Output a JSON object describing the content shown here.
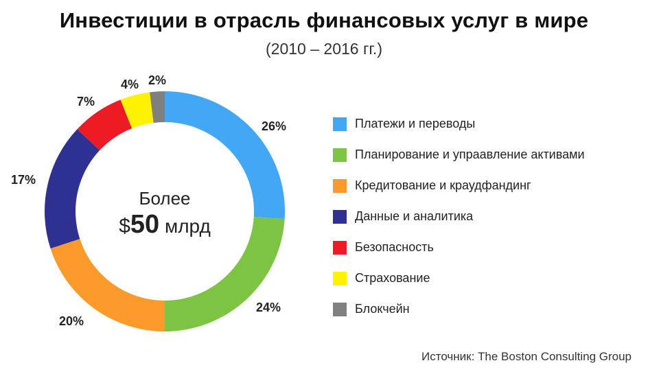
{
  "chart_data": {
    "type": "pie",
    "title": "Инвестиции в отрасль финансовых услуг в мире",
    "subtitle": "(2010 – 2016 гг.)",
    "center_text": {
      "line1": "Более",
      "currency": "$",
      "amount": "50",
      "unit": "млрд"
    },
    "slices": [
      {
        "label": "Платежи и переводы",
        "value": 26,
        "value_label": "26%",
        "color": "#42a8f5"
      },
      {
        "label": "Планирование и упраавление активами",
        "value": 24,
        "value_label": "24%",
        "color": "#7dc442"
      },
      {
        "label": "Кредитование и краудфандинг",
        "value": 20,
        "value_label": "20%",
        "color": "#f99a2b"
      },
      {
        "label": "Данные и аналитика",
        "value": 17,
        "value_label": "17%",
        "color": "#2e3192"
      },
      {
        "label": "Безопасность",
        "value": 7,
        "value_label": "7%",
        "color": "#ed1c24"
      },
      {
        "label": "Страхование",
        "value": 4,
        "value_label": "4%",
        "color": "#fff200"
      },
      {
        "label": "Блокчейн",
        "value": 2,
        "value_label": "2%",
        "color": "#808080"
      }
    ],
    "legend_position": "right",
    "source": "Источник: The Boston Consulting Group"
  }
}
